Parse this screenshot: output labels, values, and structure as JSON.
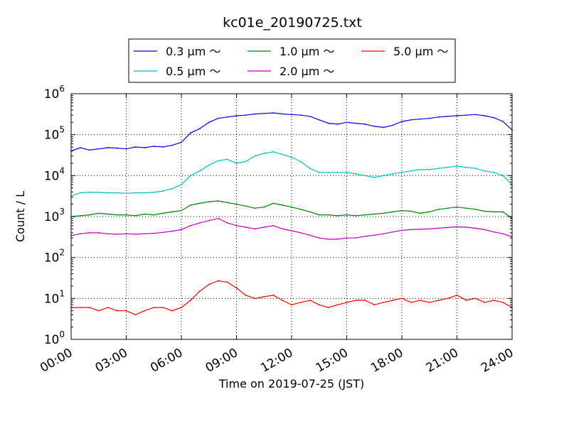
{
  "chart_data": {
    "type": "line",
    "title": "kc01e_20190725.txt",
    "xlabel": "Time on 2019-07-25 (JST)",
    "ylabel": "Count / L",
    "yscale": "log",
    "ylim": [
      1,
      1000000
    ],
    "xlim": [
      0,
      24
    ],
    "y_tick_labels": [
      {
        "base": "10",
        "exp": "0"
      },
      {
        "base": "10",
        "exp": "1"
      },
      {
        "base": "10",
        "exp": "2"
      },
      {
        "base": "10",
        "exp": "3"
      },
      {
        "base": "10",
        "exp": "4"
      },
      {
        "base": "10",
        "exp": "5"
      },
      {
        "base": "10",
        "exp": "6"
      }
    ],
    "x_tick_labels": [
      "00:00",
      "03:00",
      "06:00",
      "09:00",
      "12:00",
      "15:00",
      "18:00",
      "21:00",
      "24:00"
    ],
    "grid": true,
    "legend_position": "top",
    "x": [
      0,
      0.5,
      1,
      1.5,
      2,
      2.5,
      3,
      3.5,
      4,
      4.5,
      5,
      5.5,
      6,
      6.5,
      7,
      7.5,
      8,
      8.5,
      9,
      9.5,
      10,
      10.5,
      11,
      11.5,
      12,
      12.5,
      13,
      13.5,
      14,
      14.5,
      15,
      15.5,
      16,
      16.5,
      17,
      17.5,
      18,
      18.5,
      19,
      19.5,
      20,
      20.5,
      21,
      21.5,
      22,
      22.5,
      23,
      23.5,
      24
    ],
    "series": [
      {
        "name": "0.3 μm ～",
        "color": "#0000ff",
        "values": [
          40000,
          48000,
          42000,
          45000,
          48000,
          47000,
          45000,
          50000,
          48000,
          52000,
          50000,
          55000,
          65000,
          110000,
          140000,
          200000,
          250000,
          270000,
          290000,
          300000,
          320000,
          330000,
          340000,
          320000,
          310000,
          300000,
          280000,
          230000,
          190000,
          180000,
          200000,
          190000,
          180000,
          160000,
          150000,
          170000,
          210000,
          230000,
          240000,
          250000,
          270000,
          280000,
          290000,
          300000,
          310000,
          290000,
          260000,
          210000,
          130000
        ]
      },
      {
        "name": "0.5 μm ～",
        "color": "#00bfbf",
        "values": [
          3200,
          3800,
          3900,
          3900,
          3800,
          3800,
          3700,
          3800,
          3800,
          3900,
          4200,
          4800,
          6000,
          10000,
          13000,
          18000,
          23000,
          25000,
          20000,
          22000,
          30000,
          35000,
          38000,
          33000,
          28000,
          22000,
          15000,
          12000,
          12000,
          12000,
          12000,
          11000,
          10000,
          9000,
          10000,
          11000,
          12000,
          13000,
          14000,
          14000,
          15000,
          16000,
          17000,
          16000,
          15000,
          13000,
          12000,
          10000,
          6000
        ]
      },
      {
        "name": "1.0 μm ～",
        "color": "#008000",
        "values": [
          1000,
          1050,
          1100,
          1200,
          1150,
          1100,
          1100,
          1050,
          1150,
          1100,
          1200,
          1300,
          1400,
          1900,
          2100,
          2300,
          2400,
          2200,
          2000,
          1800,
          1600,
          1700,
          2100,
          1900,
          1700,
          1500,
          1300,
          1100,
          1100,
          1050,
          1100,
          1050,
          1100,
          1150,
          1200,
          1300,
          1400,
          1350,
          1200,
          1300,
          1500,
          1600,
          1700,
          1600,
          1500,
          1350,
          1300,
          1300,
          900
        ]
      },
      {
        "name": "2.0 μm ～",
        "color": "#bf00bf",
        "values": [
          340,
          380,
          400,
          400,
          380,
          370,
          380,
          370,
          380,
          390,
          410,
          440,
          480,
          600,
          700,
          800,
          900,
          700,
          600,
          550,
          500,
          550,
          600,
          500,
          450,
          400,
          350,
          300,
          280,
          280,
          300,
          300,
          330,
          350,
          380,
          420,
          460,
          480,
          490,
          500,
          520,
          540,
          560,
          550,
          520,
          480,
          420,
          380,
          320
        ]
      },
      {
        "name": "5.0 μm ～",
        "color": "#ff0000",
        "values": [
          6,
          6,
          6,
          5,
          6,
          5,
          5,
          4,
          5,
          6,
          6,
          5,
          6,
          9,
          15,
          22,
          27,
          25,
          18,
          12,
          10,
          11,
          12,
          9,
          7,
          8,
          9,
          7,
          6,
          7,
          8,
          9,
          9,
          7,
          8,
          9,
          10,
          8,
          9,
          8,
          9,
          10,
          12,
          9,
          10,
          8,
          9,
          8,
          6
        ]
      }
    ]
  }
}
